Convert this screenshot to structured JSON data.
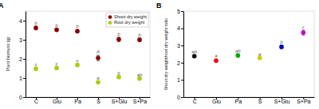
{
  "chart_data": [
    {
      "type": "scatter",
      "title": "A",
      "categories": [
        "C",
        "Glu",
        "Pa",
        "S",
        "S+Glu",
        "S+Pa"
      ],
      "series": [
        {
          "name": "Shoot dry weight",
          "color": "#8B0000",
          "marker": "circle",
          "values": [
            3.62,
            3.52,
            3.45,
            2.05,
            3.02,
            3.0
          ],
          "errors": [
            0.1,
            0.08,
            0.08,
            0.15,
            0.12,
            0.1
          ],
          "annotations": [
            "b",
            "b",
            "b",
            "A",
            "b",
            "b"
          ]
        },
        {
          "name": "Root dry weight",
          "color": "#AACC00",
          "marker": "circle",
          "values": [
            1.48,
            1.52,
            1.68,
            0.78,
            1.05,
            0.97
          ],
          "errors": [
            0.07,
            0.07,
            0.07,
            0.05,
            0.05,
            0.05
          ],
          "annotations": [
            "c",
            "c",
            "c",
            "a",
            "b",
            "ab"
          ]
        }
      ],
      "ylabel": "Plant biomass (g)",
      "ylim": [
        0,
        4.5
      ],
      "yticks": [
        0,
        1,
        2,
        3,
        4
      ],
      "legend": "top-right"
    },
    {
      "type": "scatter",
      "title": "B",
      "categories": [
        "C",
        "Glu",
        "Pa",
        "S",
        "S+Glu",
        "S+Pa"
      ],
      "values": [
        2.38,
        2.12,
        2.42,
        2.28,
        2.92,
        3.75
      ],
      "errors": [
        0.08,
        0.08,
        0.1,
        0.05,
        0.1,
        0.15
      ],
      "annotations": [
        "ab",
        "a",
        "ab",
        "a",
        "b",
        "c"
      ],
      "colors": [
        "#111111",
        "#ff0000",
        "#00aa00",
        "#cccc00",
        "#0000cc",
        "#cc00cc"
      ],
      "marker": "circle",
      "ylabel": "Shoot dry weight/root dry weight ratio",
      "ylim": [
        0,
        5
      ],
      "yticks": [
        0,
        1,
        2,
        3,
        4,
        5
      ]
    }
  ]
}
